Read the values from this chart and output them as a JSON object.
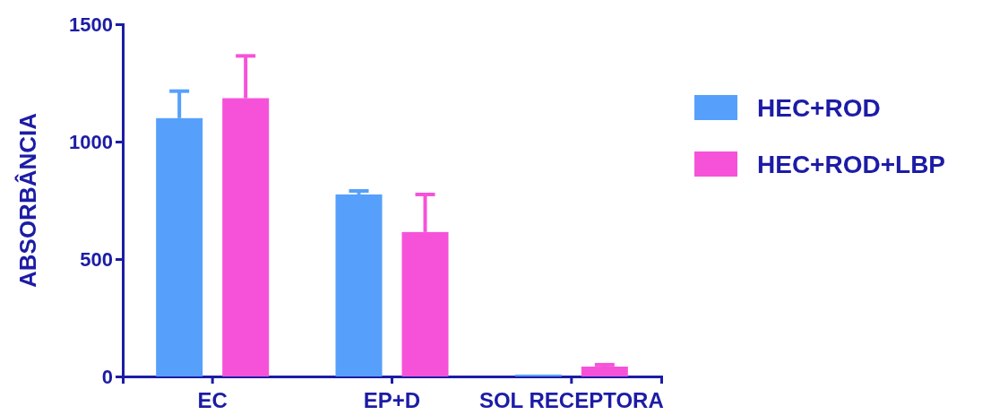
{
  "chart_data": {
    "type": "bar",
    "ylabel": "ABSORBÂNCIA",
    "categories": [
      "EC",
      "EP+D",
      "SOL RECEPTORA"
    ],
    "series": [
      {
        "name": "HEC+ROD",
        "color": "#56a0fb",
        "values": [
          1100,
          775,
          8
        ],
        "errors": [
          [
            1100,
            1215
          ],
          [
            775,
            790
          ],
          null
        ]
      },
      {
        "name": "HEC+ROD+LBP",
        "color": "#f652d9",
        "values": [
          1185,
          615,
          42
        ],
        "errors": [
          [
            1185,
            1365
          ],
          [
            615,
            775
          ],
          [
            42,
            50
          ]
        ]
      }
    ],
    "ylim": [
      0,
      1500
    ],
    "yticks": [
      0,
      500,
      1000,
      1500
    ],
    "grid": false,
    "legend": "right"
  }
}
